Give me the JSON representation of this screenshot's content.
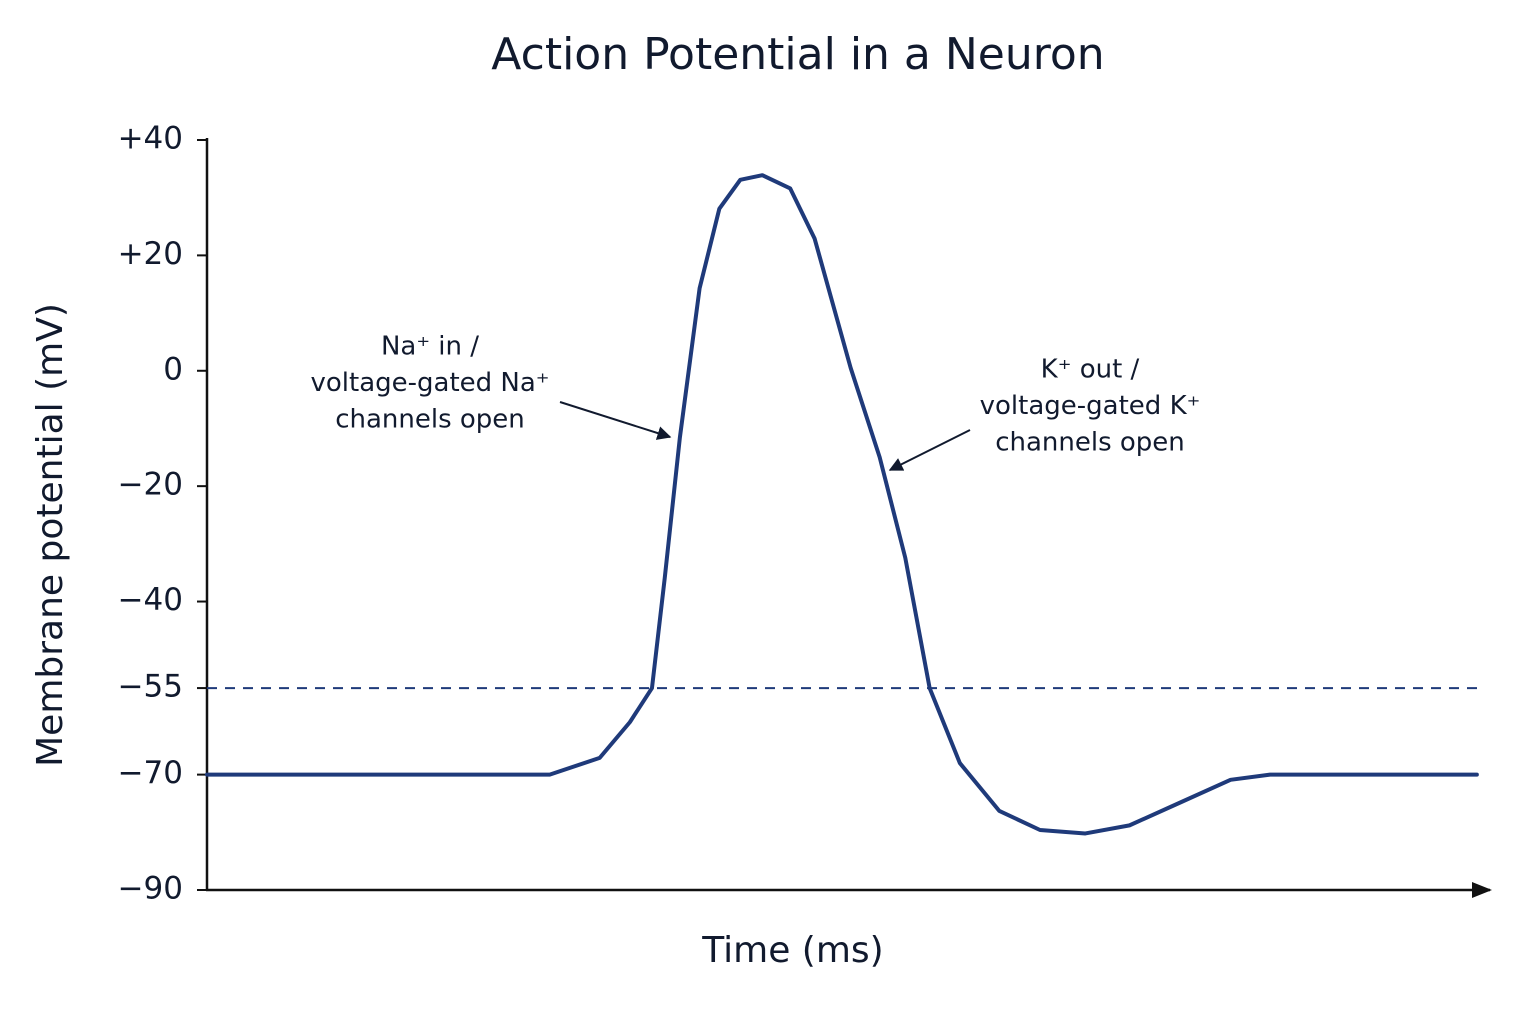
{
  "chart_data": {
    "type": "line",
    "title": "Action Potential in a Neuron",
    "x_label": "Time (ms)",
    "y_label": "Membrane potential (mV)",
    "x": [
      0,
      2.95,
      3.38,
      3.64,
      3.83,
      3.94,
      4.07,
      4.24,
      4.41,
      4.59,
      4.78,
      5.02,
      5.23,
      5.54,
      5.79,
      6.01,
      6.22,
      6.48,
      6.82,
      7.17,
      7.56,
      7.94,
      8.37,
      8.81,
      9.15,
      10.93
    ],
    "series": [
      {
        "color": "#1f3a7a",
        "values": [
          -70,
          -70,
          -67.1,
          -60.9,
          -55,
          -35.9,
          -11.6,
          14.3,
          28.1,
          33.1,
          33.9,
          31.6,
          22.9,
          0.5,
          -15,
          -32.4,
          -55,
          -68,
          -76.3,
          -79.6,
          -80.2,
          -78.8,
          -74.9,
          -70.9,
          -70,
          -70
        ]
      }
    ],
    "xlim": [
      0,
      11
    ],
    "ylim": [
      -90,
      40
    ],
    "yticks": [
      {
        "value": 40,
        "label": "+40"
      },
      {
        "value": 20,
        "label": "+20"
      },
      0,
      {
        "value": -20,
        "label": "−20"
      },
      {
        "value": -40,
        "label": "−40"
      },
      {
        "value": -55,
        "label": "−55"
      },
      {
        "value": -70,
        "label": "−70"
      },
      {
        "value": -90,
        "label": "−90"
      }
    ],
    "threshold": -55,
    "annotations": [
      {
        "lines": [
          "Na⁺ in /",
          "voltage-gated Na⁺",
          "channels open"
        ]
      },
      {
        "lines": [
          "K⁺ out /",
          "voltage-gated K⁺",
          "channels open"
        ]
      }
    ]
  }
}
